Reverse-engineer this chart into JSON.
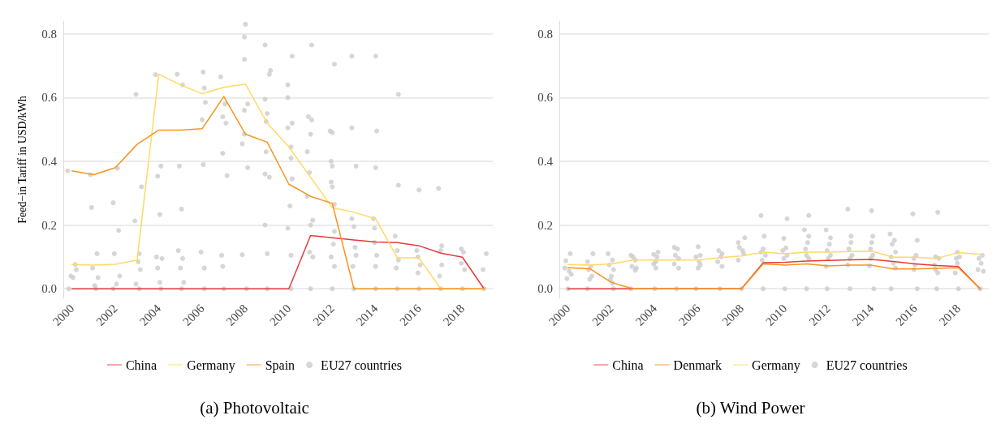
{
  "chart_data": [
    {
      "type": "line",
      "title": "(a) Photovoltaic",
      "ylabel": "Feed−in Tariff in USD/kWh",
      "x": [
        2000,
        2001,
        2002,
        2003,
        2004,
        2005,
        2006,
        2007,
        2008,
        2009,
        2010,
        2011,
        2012,
        2013,
        2014,
        2015,
        2016,
        2017,
        2018,
        2019
      ],
      "xlim": [
        1999.6,
        2019.4
      ],
      "xticks": [
        2000,
        2002,
        2004,
        2006,
        2008,
        2010,
        2012,
        2014,
        2016,
        2018
      ],
      "ylim": [
        -0.03,
        0.84
      ],
      "yticks": [
        {
          "value": 0,
          "label": "0.0"
        },
        0.2,
        0.4,
        0.6,
        0.8
      ],
      "grid": "y",
      "legend": "bottom",
      "marker": "none",
      "tick_labels": "xy",
      "series": [
        {
          "name": "China",
          "color": "#e8393a",
          "values": [
            0,
            0,
            0,
            0,
            0,
            0,
            0,
            0,
            0,
            0,
            0,
            0.167,
            0.16,
            0.153,
            0.147,
            0.145,
            0.135,
            0.112,
            0.099,
            0
          ]
        },
        {
          "name": "Germany",
          "color": "#ffd966",
          "values": [
            0.076,
            0.074,
            0.077,
            0.09,
            0.673,
            0.64,
            0.612,
            0.632,
            0.642,
            0.52,
            0.445,
            0.35,
            0.255,
            0.24,
            0.22,
            0.097,
            0.097,
            0,
            0,
            0
          ]
        },
        {
          "name": "Spain",
          "color": "#f7941d",
          "values": [
            0.37,
            0.358,
            0.38,
            0.453,
            0.498,
            0.498,
            0.502,
            0.603,
            0.485,
            0.46,
            0.328,
            0.29,
            0.268,
            0,
            0,
            0,
            0,
            0,
            0,
            0
          ]
        },
        {
          "name": "EU27 countries",
          "type": "scatter",
          "marker": "circle",
          "color": "#cccccc",
          "x": [
            1999.8,
            2000.15,
            1999.95,
            2000.2,
            2000.05,
            1999.85,
            2000.9,
            2001.15,
            2000.95,
            2001.2,
            2001.05,
            2000.85,
            2001.1,
            2001.9,
            2001.9,
            2002.15,
            2001.95,
            2002.2,
            2002.05,
            2002.1,
            2002.95,
            2003.2,
            2002.9,
            2003.1,
            2003.05,
            2003.15,
            2002.95,
            2003.1,
            2003.85,
            2004.1,
            2003.95,
            2004.05,
            2003.9,
            2004.15,
            2003.95,
            2004.05,
            2004.1,
            2004.85,
            2005.1,
            2004.95,
            2005.05,
            2004.9,
            2005.1,
            2005.0,
            2005.15,
            2005.05,
            2006.05,
            2006.1,
            2006.15,
            2006.0,
            2006.05,
            2005.95,
            2006.1,
            2006.1,
            2006.85,
            2007.05,
            2006.95,
            2007.1,
            2006.95,
            2007.15,
            2006.9,
            2006.95,
            2007.0,
            2008.0,
            2007.95,
            2007.95,
            2008.1,
            2007.95,
            2007.95,
            2007.85,
            2008.1,
            2007.85,
            2008.05,
            2008.9,
            2009.15,
            2009.1,
            2008.9,
            2009.0,
            2008.95,
            2008.95,
            2008.9,
            2009.1,
            2008.9,
            2009.0,
            2009.0,
            2010.15,
            2009.95,
            2009.95,
            2010.15,
            2009.95,
            2010.1,
            2010.1,
            2010.15,
            2010.05,
            2009.95,
            2010.1,
            2010.1,
            2011.05,
            2010.9,
            2011.05,
            2011.0,
            2010.85,
            2010.95,
            2010.85,
            2011.1,
            2011.0,
            2010.95,
            2011.1,
            2011.0,
            2012.1,
            2011.9,
            2012.0,
            2011.95,
            2012.0,
            2011.95,
            2012.0,
            2012.1,
            2012.1,
            2012.05,
            2011.95,
            2012.1,
            2012.0,
            2012.9,
            2012.9,
            2013.1,
            2012.9,
            2013.0,
            2013.05,
            2013.1,
            2012.95,
            2013.0,
            2014.0,
            2014.05,
            2014.0,
            2013.9,
            2013.95,
            2013.95,
            2014.05,
            2014.0,
            2014.0,
            2015.05,
            2015.05,
            2014.9,
            2015.0,
            2015.05,
            2014.95,
            2015.0,
            2016.0,
            2015.9,
            2015.95,
            2016.05,
            2015.95,
            2016.0,
            2016.9,
            2017.05,
            2017.0,
            2017.05,
            2016.95,
            2017.0,
            2017.95,
            2018.05,
            2017.95,
            2018.1,
            2018.0,
            2019.1,
            2018.95,
            2019.0
          ],
          "values": [
            0.37,
            0.076,
            0.04,
            0.06,
            0.035,
            0,
            0.255,
            0.11,
            0.065,
            0.035,
            0.01,
            0.358,
            0,
            0,
            0.27,
            0.183,
            0.11,
            0.04,
            0.015,
            0.378,
            0.61,
            0.32,
            0.213,
            0.11,
            0.085,
            0.06,
            0.015,
            0,
            0.672,
            0.385,
            0.353,
            0.233,
            0.1,
            0.095,
            0.065,
            0.02,
            0,
            0.673,
            0.64,
            0.385,
            0.25,
            0.12,
            0.095,
            0.065,
            0.02,
            0,
            0.68,
            0.63,
            0.585,
            0.53,
            0.39,
            0.115,
            0.065,
            0,
            0.665,
            0.58,
            0.54,
            0.52,
            0.425,
            0.355,
            0.105,
            0.07,
            0,
            0.83,
            0.79,
            0.72,
            0.58,
            0.56,
            0.485,
            0.455,
            0.38,
            0.107,
            0,
            0.765,
            0.685,
            0.673,
            0.595,
            0.55,
            0.525,
            0.43,
            0.36,
            0.35,
            0.2,
            0.11,
            0,
            0.73,
            0.64,
            0.6,
            0.52,
            0.505,
            0.445,
            0.41,
            0.345,
            0.26,
            0.19,
            0.105,
            0,
            0.765,
            0.54,
            0.53,
            0.485,
            0.43,
            0.365,
            0.29,
            0.215,
            0.2,
            0.115,
            0.1,
            0,
            0.705,
            0.495,
            0.49,
            0.4,
            0.385,
            0.335,
            0.32,
            0.265,
            0.18,
            0.14,
            0.1,
            0.07,
            0,
            0.73,
            0.505,
            0.385,
            0.22,
            0.195,
            0.13,
            0.105,
            0.07,
            0,
            0.73,
            0.495,
            0.38,
            0.22,
            0.19,
            0.145,
            0.105,
            0.07,
            0,
            0.61,
            0.325,
            0.165,
            0.12,
            0.09,
            0.065,
            0,
            0.31,
            0.12,
            0.1,
            0.075,
            0.05,
            0,
            0.315,
            0.135,
            0.12,
            0.075,
            0.04,
            0,
            0.125,
            0.115,
            0.08,
            0.06,
            0,
            0.11,
            0.06,
            0
          ]
        }
      ]
    },
    {
      "type": "line",
      "title": "(b) Wind Power",
      "x": [
        2000,
        2001,
        2002,
        2003,
        2004,
        2005,
        2006,
        2007,
        2008,
        2009,
        2010,
        2011,
        2012,
        2013,
        2014,
        2015,
        2016,
        2017,
        2018,
        2019
      ],
      "xlim": [
        1999.6,
        2019.4
      ],
      "xticks": [
        2000,
        2002,
        2004,
        2006,
        2008,
        2010,
        2012,
        2014,
        2016,
        2018
      ],
      "ylim": [
        -0.03,
        0.84
      ],
      "yticks": [
        {
          "value": 0,
          "label": "0.0"
        },
        0.2,
        0.4,
        0.6,
        0.8
      ],
      "grid": "y",
      "legend": "bottom",
      "marker": "none",
      "tick_labels": "xy",
      "series": [
        {
          "name": "China",
          "color": "#e8393a",
          "values": [
            0,
            0,
            0,
            0,
            0,
            0,
            0,
            0,
            0,
            0.082,
            0.083,
            0.087,
            0.089,
            0.091,
            0.092,
            0.086,
            0.078,
            0.073,
            0.07,
            0
          ]
        },
        {
          "name": "Denmark",
          "color": "#f7941d",
          "values": [
            0.066,
            0.063,
            0.02,
            0,
            0,
            0,
            0,
            0,
            0,
            0.078,
            0.074,
            0.078,
            0.072,
            0.074,
            0.074,
            0.062,
            0.062,
            0.064,
            0.066,
            0
          ]
        },
        {
          "name": "Germany",
          "color": "#ffd966",
          "values": [
            0.076,
            0.074,
            0.078,
            0.09,
            0.091,
            0.09,
            0.09,
            0.098,
            0.103,
            0.115,
            0.11,
            0.115,
            0.115,
            0.117,
            0.118,
            0.099,
            0.099,
            0.095,
            0.114,
            0.108
          ]
        },
        {
          "name": "EU27 countries",
          "type": "scatter",
          "marker": "circle",
          "color": "#cccccc",
          "x": [
            2000.1,
            1999.9,
            1999.85,
            2000.05,
            2000.15,
            1999.95,
            2000.0,
            2001.15,
            2000.9,
            2001.05,
            2000.95,
            2001.1,
            2001.0,
            2000.9,
            2001.85,
            2002.05,
            2001.9,
            2002.1,
            2002.0,
            2001.95,
            2002.05,
            2002.1,
            2002.9,
            2003.0,
            2003.1,
            2002.95,
            2003.15,
            2003.1,
            2002.9,
            2004.15,
            2003.95,
            2004.1,
            2004.05,
            2003.95,
            2004.05,
            2004.0,
            2004.9,
            2005.05,
            2004.95,
            2005.1,
            2004.9,
            2005.1,
            2005.0,
            2006.0,
            2006.1,
            2005.9,
            2006.05,
            2006.1,
            2006.0,
            2005.9,
            2006.95,
            2007.1,
            2007.05,
            2006.9,
            2007.1,
            2007.0,
            2008.15,
            2007.85,
            2007.9,
            2008.05,
            2008.1,
            2007.85,
            2008.0,
            2008.9,
            2009.05,
            2009.0,
            2008.9,
            2009.1,
            2008.95,
            2009.0,
            2010.1,
            2009.95,
            2010.05,
            2009.9,
            2010.1,
            2009.95,
            2010.0,
            2011.1,
            2010.9,
            2011.1,
            2011.05,
            2010.95,
            2011.0,
            2011.1,
            2011.0,
            2011.9,
            2012.1,
            2012.05,
            2011.95,
            2012.1,
            2012.0,
            2011.9,
            2011.95,
            2012.9,
            2013.05,
            2013.05,
            2012.95,
            2013.1,
            2013.0,
            2012.9,
            2013.0,
            2014.0,
            2014.05,
            2014.0,
            2013.95,
            2014.05,
            2013.95,
            2013.9,
            2014.1,
            2014.85,
            2015.05,
            2014.95,
            2015.1,
            2014.9,
            2015.0,
            2015.1,
            2014.9,
            2015.9,
            2016.1,
            2016.05,
            2015.95,
            2016.0,
            2015.95,
            2016.1,
            2017.05,
            2016.95,
            2017.1,
            2016.9,
            2016.95,
            2017.05,
            2017.0,
            2017.95,
            2018.05,
            2017.9,
            2017.95,
            2017.85,
            2018.0,
            2019.1,
            2018.95,
            2019.05,
            2018.9,
            2019.15,
            2019.0
          ],
          "values": [
            0.11,
            0.088,
            0.065,
            0.055,
            0.045,
            0.032,
            0,
            0.11,
            0.085,
            0.07,
            0.06,
            0.04,
            0.03,
            0,
            0.11,
            0.09,
            0.075,
            0.06,
            0.04,
            0.028,
            0.018,
            0,
            0.105,
            0.1,
            0.09,
            0.07,
            0.065,
            0.058,
            0,
            0.115,
            0.108,
            0.1,
            0.085,
            0.078,
            0.065,
            0,
            0.13,
            0.125,
            0.105,
            0.095,
            0.078,
            0.065,
            0,
            0.132,
            0.105,
            0.1,
            0.085,
            0.075,
            0.065,
            0,
            0.12,
            0.11,
            0.1,
            0.085,
            0.07,
            0,
            0.16,
            0.145,
            0.13,
            0.12,
            0.11,
            0.09,
            0,
            0.23,
            0.165,
            0.125,
            0.115,
            0.105,
            0.09,
            0,
            0.22,
            0.158,
            0.128,
            0.12,
            0.105,
            0.095,
            0,
            0.23,
            0.185,
            0.165,
            0.145,
            0.125,
            0.105,
            0.095,
            0,
            0.185,
            0.16,
            0.14,
            0.12,
            0.105,
            0.095,
            0.07,
            0,
            0.25,
            0.165,
            0.145,
            0.125,
            0.105,
            0.095,
            0.075,
            0,
            0.245,
            0.165,
            0.145,
            0.125,
            0.105,
            0.095,
            0.072,
            0,
            0.172,
            0.152,
            0.14,
            0.115,
            0.1,
            0.08,
            0.065,
            0,
            0.235,
            0.152,
            0.105,
            0.095,
            0.075,
            0.06,
            0,
            0.24,
            0.1,
            0.095,
            0.075,
            0.06,
            0.05,
            0,
            0.115,
            0.1,
            0.095,
            0.08,
            0.05,
            0,
            0.105,
            0.095,
            0.08,
            0.06,
            0.055,
            0
          ]
        }
      ]
    }
  ]
}
